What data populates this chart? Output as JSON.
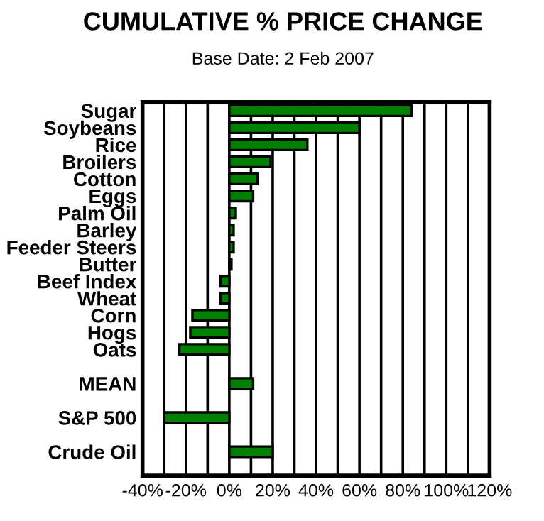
{
  "chart_data": {
    "type": "bar",
    "orientation": "horizontal",
    "title": "CUMULATIVE % PRICE CHANGE",
    "subtitle": "Base Date: 2 Feb 2007",
    "categories": [
      "Sugar",
      "Soybeans",
      "Rice",
      "Broilers",
      "Cotton",
      "Eggs",
      "Palm Oil",
      "Barley",
      "Feeder Steers",
      "Butter",
      "Beef Index",
      "Wheat",
      "Corn",
      "Hogs",
      "Oats",
      null,
      "MEAN",
      null,
      "S&P 500",
      null,
      "Crude Oil"
    ],
    "values": [
      84,
      60,
      36,
      19,
      13,
      11,
      3,
      2,
      2,
      1,
      -4,
      -4,
      -17,
      -18,
      -23,
      null,
      11,
      null,
      -30,
      null,
      20
    ],
    "color": "#008000",
    "xlim": [
      -40,
      120
    ],
    "xticks": [
      {
        "value": -40,
        "label": "-40%"
      },
      {
        "value": -30,
        "label": null
      },
      {
        "value": -20,
        "label": "-20%"
      },
      {
        "value": -10,
        "label": null
      },
      {
        "value": 0,
        "label": "0%"
      },
      {
        "value": 10,
        "label": null
      },
      {
        "value": 20,
        "label": "20%"
      },
      {
        "value": 30,
        "label": null
      },
      {
        "value": 40,
        "label": "40%"
      },
      {
        "value": 50,
        "label": null
      },
      {
        "value": 60,
        "label": "60%"
      },
      {
        "value": 70,
        "label": null
      },
      {
        "value": 80,
        "label": "80%"
      },
      {
        "value": 90,
        "label": null
      },
      {
        "value": 100,
        "label": "100%"
      },
      {
        "value": 110,
        "label": null
      },
      {
        "value": 120,
        "label": "120%"
      }
    ],
    "grid": "x"
  }
}
